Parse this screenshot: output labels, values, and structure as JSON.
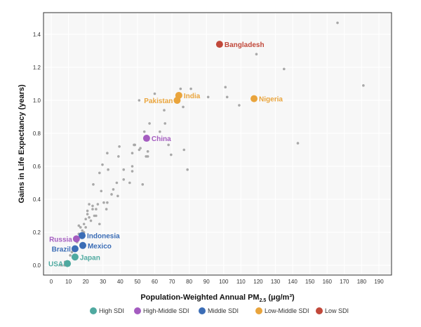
{
  "chart_data": {
    "type": "scatter",
    "title": "",
    "xlabel": "Population-Weighted Annual PM",
    "xlabel_sub": "2.5",
    "xlabel_unit": " (μg/m³)",
    "ylabel": "Gains in Life Expectancy (years)",
    "xlim": [
      0,
      190
    ],
    "ylim": [
      0,
      1.4
    ],
    "xticks": [
      0,
      10,
      20,
      30,
      40,
      50,
      60,
      70,
      80,
      90,
      100,
      110,
      120,
      130,
      140,
      150,
      160,
      170,
      180,
      190
    ],
    "yticks": [
      "0.0",
      "0.2",
      "0.4",
      "0.6",
      "0.8",
      "1.0",
      "1.2",
      "1.4"
    ],
    "grid": true,
    "legend_position": "bottom",
    "legend": [
      {
        "name": "High SDI",
        "color": "#4fa9a0"
      },
      {
        "name": "High-Middle SDI",
        "color": "#a45cc0"
      },
      {
        "name": "Middle SDI",
        "color": "#3b6db6"
      },
      {
        "name": "Low-Middle SDI",
        "color": "#e9a43c"
      },
      {
        "name": "Low SDI",
        "color": "#c1483a"
      }
    ],
    "highlighted": [
      {
        "name": "Bangladesh",
        "x": 97.6,
        "y": 1.34,
        "group": "Low SDI"
      },
      {
        "name": "India",
        "x": 74,
        "y": 1.03,
        "group": "Low-Middle SDI"
      },
      {
        "name": "Pakistan",
        "x": 73,
        "y": 1.0,
        "group": "Low-Middle SDI"
      },
      {
        "name": "Nigeria",
        "x": 117.6,
        "y": 1.01,
        "group": "Low-Middle SDI"
      },
      {
        "name": "China",
        "x": 55.3,
        "y": 0.77,
        "group": "High-Middle SDI"
      },
      {
        "name": "Indonesia",
        "x": 17.9,
        "y": 0.18,
        "group": "Middle SDI"
      },
      {
        "name": "Russia",
        "x": 14.6,
        "y": 0.16,
        "group": "High-Middle SDI"
      },
      {
        "name": "Mexico",
        "x": 18.3,
        "y": 0.12,
        "group": "Middle SDI"
      },
      {
        "name": "Brazil",
        "x": 13.8,
        "y": 0.1,
        "group": "Middle SDI"
      },
      {
        "name": "Japan",
        "x": 13.8,
        "y": 0.05,
        "group": "High SDI"
      },
      {
        "name": "USA",
        "x": 9.4,
        "y": 0.01,
        "group": "High SDI"
      }
    ],
    "other_points": [
      [
        166,
        1.47
      ],
      [
        119,
        1.28
      ],
      [
        135,
        1.19
      ],
      [
        181,
        1.09
      ],
      [
        143,
        0.74
      ],
      [
        101,
        1.08
      ],
      [
        102,
        1.02
      ],
      [
        109,
        0.97
      ],
      [
        91,
        1.02
      ],
      [
        81,
        1.07
      ],
      [
        75,
        1.07
      ],
      [
        60,
        1.04
      ],
      [
        51,
        1.0
      ],
      [
        76.5,
        0.96
      ],
      [
        65.5,
        0.94
      ],
      [
        57,
        0.86
      ],
      [
        66,
        0.86
      ],
      [
        54,
        0.81
      ],
      [
        63,
        0.81
      ],
      [
        48,
        0.73
      ],
      [
        51,
        0.7
      ],
      [
        56,
        0.69
      ],
      [
        68,
        0.73
      ],
      [
        77,
        0.7
      ],
      [
        69.5,
        0.67
      ],
      [
        56,
        0.66
      ],
      [
        47,
        0.68
      ],
      [
        79,
        0.58
      ],
      [
        47,
        0.6
      ],
      [
        47,
        0.57
      ],
      [
        39.5,
        0.72
      ],
      [
        48.5,
        0.73
      ],
      [
        51.7,
        0.71
      ],
      [
        32.5,
        0.68
      ],
      [
        39,
        0.66
      ],
      [
        55,
        0.66
      ],
      [
        29.7,
        0.61
      ],
      [
        33,
        0.58
      ],
      [
        28,
        0.56
      ],
      [
        42,
        0.58
      ],
      [
        38,
        0.5
      ],
      [
        42,
        0.52
      ],
      [
        45.5,
        0.5
      ],
      [
        53,
        0.49
      ],
      [
        24.4,
        0.49
      ],
      [
        29,
        0.45
      ],
      [
        36,
        0.46
      ],
      [
        35,
        0.43
      ],
      [
        38.6,
        0.42
      ],
      [
        22,
        0.37
      ],
      [
        27,
        0.37
      ],
      [
        30.5,
        0.38
      ],
      [
        32.5,
        0.38
      ],
      [
        24,
        0.34
      ],
      [
        26,
        0.34
      ],
      [
        32,
        0.34
      ],
      [
        21,
        0.31
      ],
      [
        25,
        0.3
      ],
      [
        20,
        0.28
      ],
      [
        23,
        0.27
      ],
      [
        28,
        0.25
      ],
      [
        19,
        0.25
      ],
      [
        17,
        0.23
      ],
      [
        18,
        0.21
      ],
      [
        20,
        0.23
      ],
      [
        22,
        0.29
      ],
      [
        19,
        0.2
      ],
      [
        16,
        0.19
      ],
      [
        15,
        0.14
      ],
      [
        12,
        0.08
      ],
      [
        11,
        0.06
      ],
      [
        7.7,
        0.0
      ],
      [
        5.7,
        0.0
      ],
      [
        8,
        0.02
      ],
      [
        16,
        0.24
      ],
      [
        21,
        0.33
      ],
      [
        26,
        0.3
      ],
      [
        24,
        0.36
      ]
    ]
  }
}
